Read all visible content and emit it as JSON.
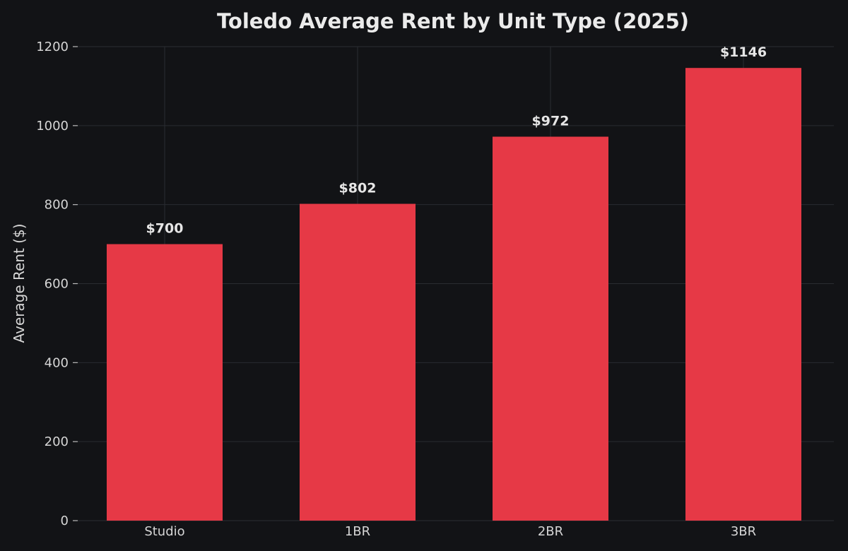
{
  "chart_data": {
    "type": "bar",
    "title": "Toledo Average Rent by Unit Type (2025)",
    "xlabel": "",
    "ylabel": "Average Rent ($)",
    "categories": [
      "Studio",
      "1BR",
      "2BR",
      "3BR"
    ],
    "values": [
      700,
      802,
      972,
      1146
    ],
    "data_labels": [
      "$700",
      "$802",
      "$972",
      "$1146"
    ],
    "ylim": [
      0,
      1200
    ],
    "yticks": [
      0,
      200,
      400,
      600,
      800,
      1000,
      1200
    ],
    "grid": true,
    "legend": "none",
    "colors": {
      "background": "#121316",
      "bar": "#e63946",
      "grid": "#2a2c31",
      "text": "#d6d6d6"
    }
  }
}
